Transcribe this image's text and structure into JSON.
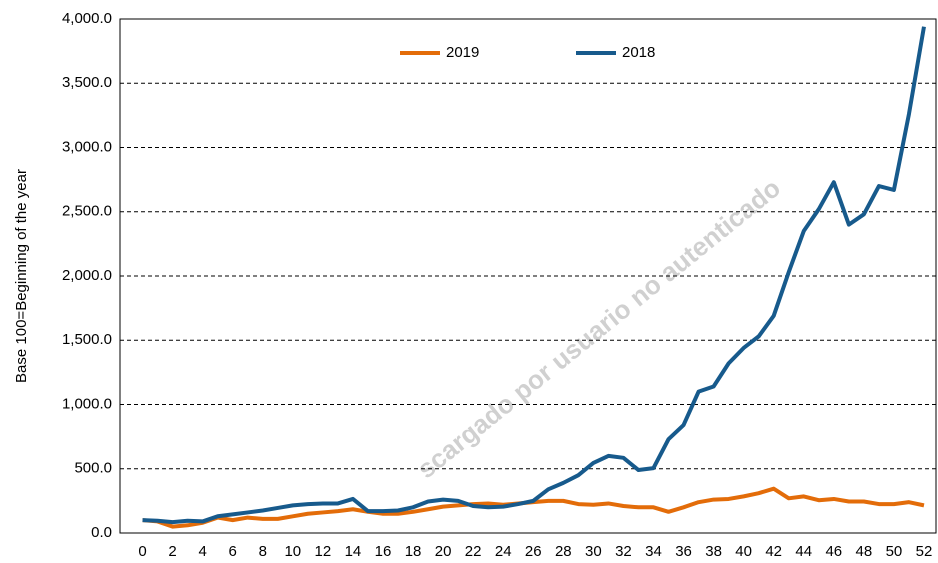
{
  "chart_data": {
    "type": "line",
    "y_label": "Base 100=Beginning of the year",
    "watermark": "scargado por usuario no autenticado",
    "x": [
      0,
      1,
      2,
      3,
      4,
      5,
      6,
      7,
      8,
      9,
      10,
      11,
      12,
      13,
      14,
      15,
      16,
      17,
      18,
      19,
      20,
      21,
      22,
      23,
      24,
      25,
      26,
      27,
      28,
      29,
      30,
      31,
      32,
      33,
      34,
      35,
      36,
      37,
      38,
      39,
      40,
      41,
      42,
      43,
      44,
      45,
      46,
      47,
      48,
      49,
      50,
      51,
      52
    ],
    "series": [
      {
        "name": "2019",
        "color": "#e36c09",
        "values": [
          100,
          90,
          50,
          60,
          80,
          120,
          100,
          120,
          110,
          110,
          130,
          150,
          160,
          170,
          185,
          165,
          150,
          150,
          165,
          185,
          205,
          215,
          225,
          230,
          220,
          230,
          240,
          250,
          250,
          225,
          220,
          230,
          210,
          200,
          200,
          165,
          200,
          240,
          260,
          265,
          285,
          310,
          345,
          270,
          285,
          255,
          265,
          245,
          245,
          225,
          225,
          240,
          215
        ]
      },
      {
        "name": "2018",
        "color": "#175a8c",
        "values": [
          100,
          95,
          85,
          95,
          90,
          130,
          145,
          160,
          175,
          195,
          215,
          225,
          230,
          230,
          265,
          170,
          170,
          175,
          200,
          245,
          260,
          250,
          210,
          200,
          205,
          225,
          250,
          340,
          390,
          450,
          545,
          600,
          585,
          490,
          505,
          730,
          840,
          1100,
          1140,
          1320,
          1440,
          1530,
          1690,
          2030,
          2350,
          2520,
          2730,
          2400,
          2480,
          2700,
          2670,
          3260,
          3940
        ]
      }
    ],
    "xlim": [
      -1.5,
      52.8
    ],
    "xticks": [
      0,
      2,
      4,
      6,
      8,
      10,
      12,
      14,
      16,
      18,
      20,
      22,
      24,
      26,
      28,
      30,
      32,
      34,
      36,
      38,
      40,
      42,
      44,
      46,
      48,
      50,
      52
    ],
    "ylim": [
      0,
      4000
    ],
    "yticks": [
      {
        "value": 0,
        "label": "0.0"
      },
      {
        "value": 500,
        "label": "500.0"
      },
      {
        "value": 1000,
        "label": "1,000.0"
      },
      {
        "value": 1500,
        "label": "1,500.0"
      },
      {
        "value": 2000,
        "label": "2,000.0"
      },
      {
        "value": 2500,
        "label": "2,500.0"
      },
      {
        "value": 3000,
        "label": "3,000.0"
      },
      {
        "value": 3500,
        "label": "3,500.0"
      },
      {
        "value": 4000,
        "label": "4,000.0"
      }
    ],
    "grid": true,
    "legend": "top"
  }
}
